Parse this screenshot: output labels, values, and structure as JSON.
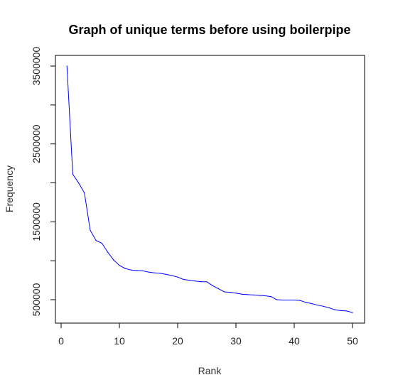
{
  "chart_data": {
    "type": "line",
    "title": "Graph of unique terms before using boilerpipe",
    "xlabel": "Rank",
    "ylabel": "Frequency",
    "xlim": [
      0,
      50
    ],
    "ylim": [
      500000,
      3500000
    ],
    "xticks": [
      0,
      10,
      20,
      30,
      40,
      50
    ],
    "yticks": [
      500000,
      1000000,
      1500000,
      2000000,
      2500000,
      3000000,
      3500000
    ],
    "ytick_labels": [
      "500000",
      "",
      "1500000",
      "",
      "2500000",
      "",
      "3500000"
    ],
    "grid": false,
    "legend": "none",
    "series": [
      {
        "color": "#0000ff",
        "x": [
          1,
          2,
          3,
          4,
          5,
          6,
          7,
          8,
          9,
          10,
          11,
          12,
          13,
          14,
          15,
          16,
          17,
          18,
          19,
          20,
          21,
          22,
          23,
          24,
          25,
          26,
          27,
          28,
          29,
          30,
          31,
          32,
          33,
          34,
          35,
          36,
          37,
          38,
          39,
          40,
          41,
          42,
          43,
          44,
          45,
          46,
          47,
          48,
          49,
          50
        ],
        "y": [
          3500000,
          2110000,
          2000000,
          1870000,
          1390000,
          1260000,
          1225000,
          1110000,
          1010000,
          940000,
          900000,
          880000,
          875000,
          870000,
          855000,
          845000,
          840000,
          825000,
          810000,
          790000,
          760000,
          750000,
          740000,
          730000,
          730000,
          680000,
          640000,
          600000,
          595000,
          585000,
          570000,
          565000,
          560000,
          555000,
          550000,
          540000,
          500000,
          495000,
          495000,
          495000,
          490000,
          465000,
          450000,
          430000,
          415000,
          395000,
          370000,
          360000,
          355000,
          335000
        ]
      }
    ]
  }
}
